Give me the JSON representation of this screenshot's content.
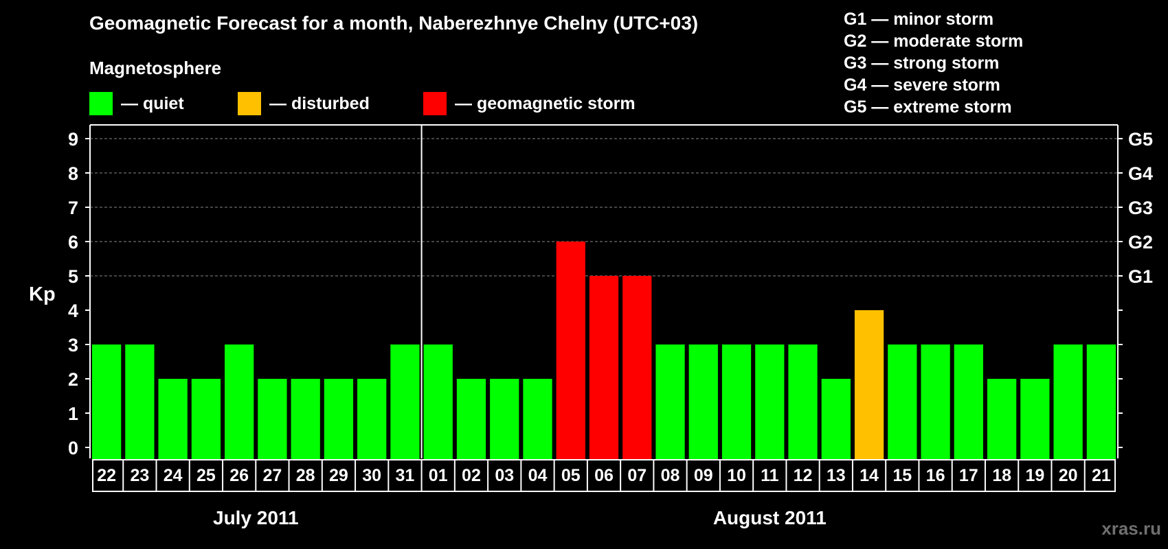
{
  "header": {
    "title": "Geomagnetic Forecast for a month, Naberezhnye Chelny (UTC+03)",
    "magnetosphere_label": "Magnetosphere"
  },
  "legend": {
    "quiet": {
      "label": "— quiet",
      "color": "#00ff00"
    },
    "disturbed": {
      "label": "— disturbed",
      "color": "#ffc000"
    },
    "storm": {
      "label": "— geomagnetic storm",
      "color": "#ff0000"
    }
  },
  "storm_scale": [
    "G1 — minor storm",
    "G2 — moderate storm",
    "G3 — strong storm",
    "G4 — severe storm",
    "G5 — extreme storm"
  ],
  "watermark": "xras.ru",
  "chart_data": {
    "type": "bar",
    "ylabel": "Kp",
    "ylim": [
      0,
      9
    ],
    "y_ticks": [
      0,
      1,
      2,
      3,
      4,
      5,
      6,
      7,
      8,
      9
    ],
    "right_axis_labels": [
      {
        "kp": 5,
        "label": "G1"
      },
      {
        "kp": 6,
        "label": "G2"
      },
      {
        "kp": 7,
        "label": "G3"
      },
      {
        "kp": 8,
        "label": "G4"
      },
      {
        "kp": 9,
        "label": "G5"
      }
    ],
    "grid": true,
    "categories": [
      "22",
      "23",
      "24",
      "25",
      "26",
      "27",
      "28",
      "29",
      "30",
      "31",
      "01",
      "02",
      "03",
      "04",
      "05",
      "06",
      "07",
      "08",
      "09",
      "10",
      "11",
      "12",
      "13",
      "14",
      "15",
      "16",
      "17",
      "18",
      "19",
      "20",
      "21"
    ],
    "values": [
      3,
      3,
      2,
      2,
      3,
      2,
      2,
      2,
      2,
      3,
      3,
      2,
      2,
      2,
      6,
      5,
      5,
      3,
      3,
      3,
      3,
      3,
      2,
      4,
      3,
      3,
      3,
      2,
      2,
      3,
      3
    ],
    "status": [
      "quiet",
      "quiet",
      "quiet",
      "quiet",
      "quiet",
      "quiet",
      "quiet",
      "quiet",
      "quiet",
      "quiet",
      "quiet",
      "quiet",
      "quiet",
      "quiet",
      "storm",
      "storm",
      "storm",
      "quiet",
      "quiet",
      "quiet",
      "quiet",
      "quiet",
      "quiet",
      "disturbed",
      "quiet",
      "quiet",
      "quiet",
      "quiet",
      "quiet",
      "quiet",
      "quiet"
    ],
    "month_groups": [
      {
        "label": "July 2011",
        "first": "22",
        "last": "31"
      },
      {
        "label": "August 2011",
        "first": "01",
        "last": "21"
      }
    ]
  }
}
